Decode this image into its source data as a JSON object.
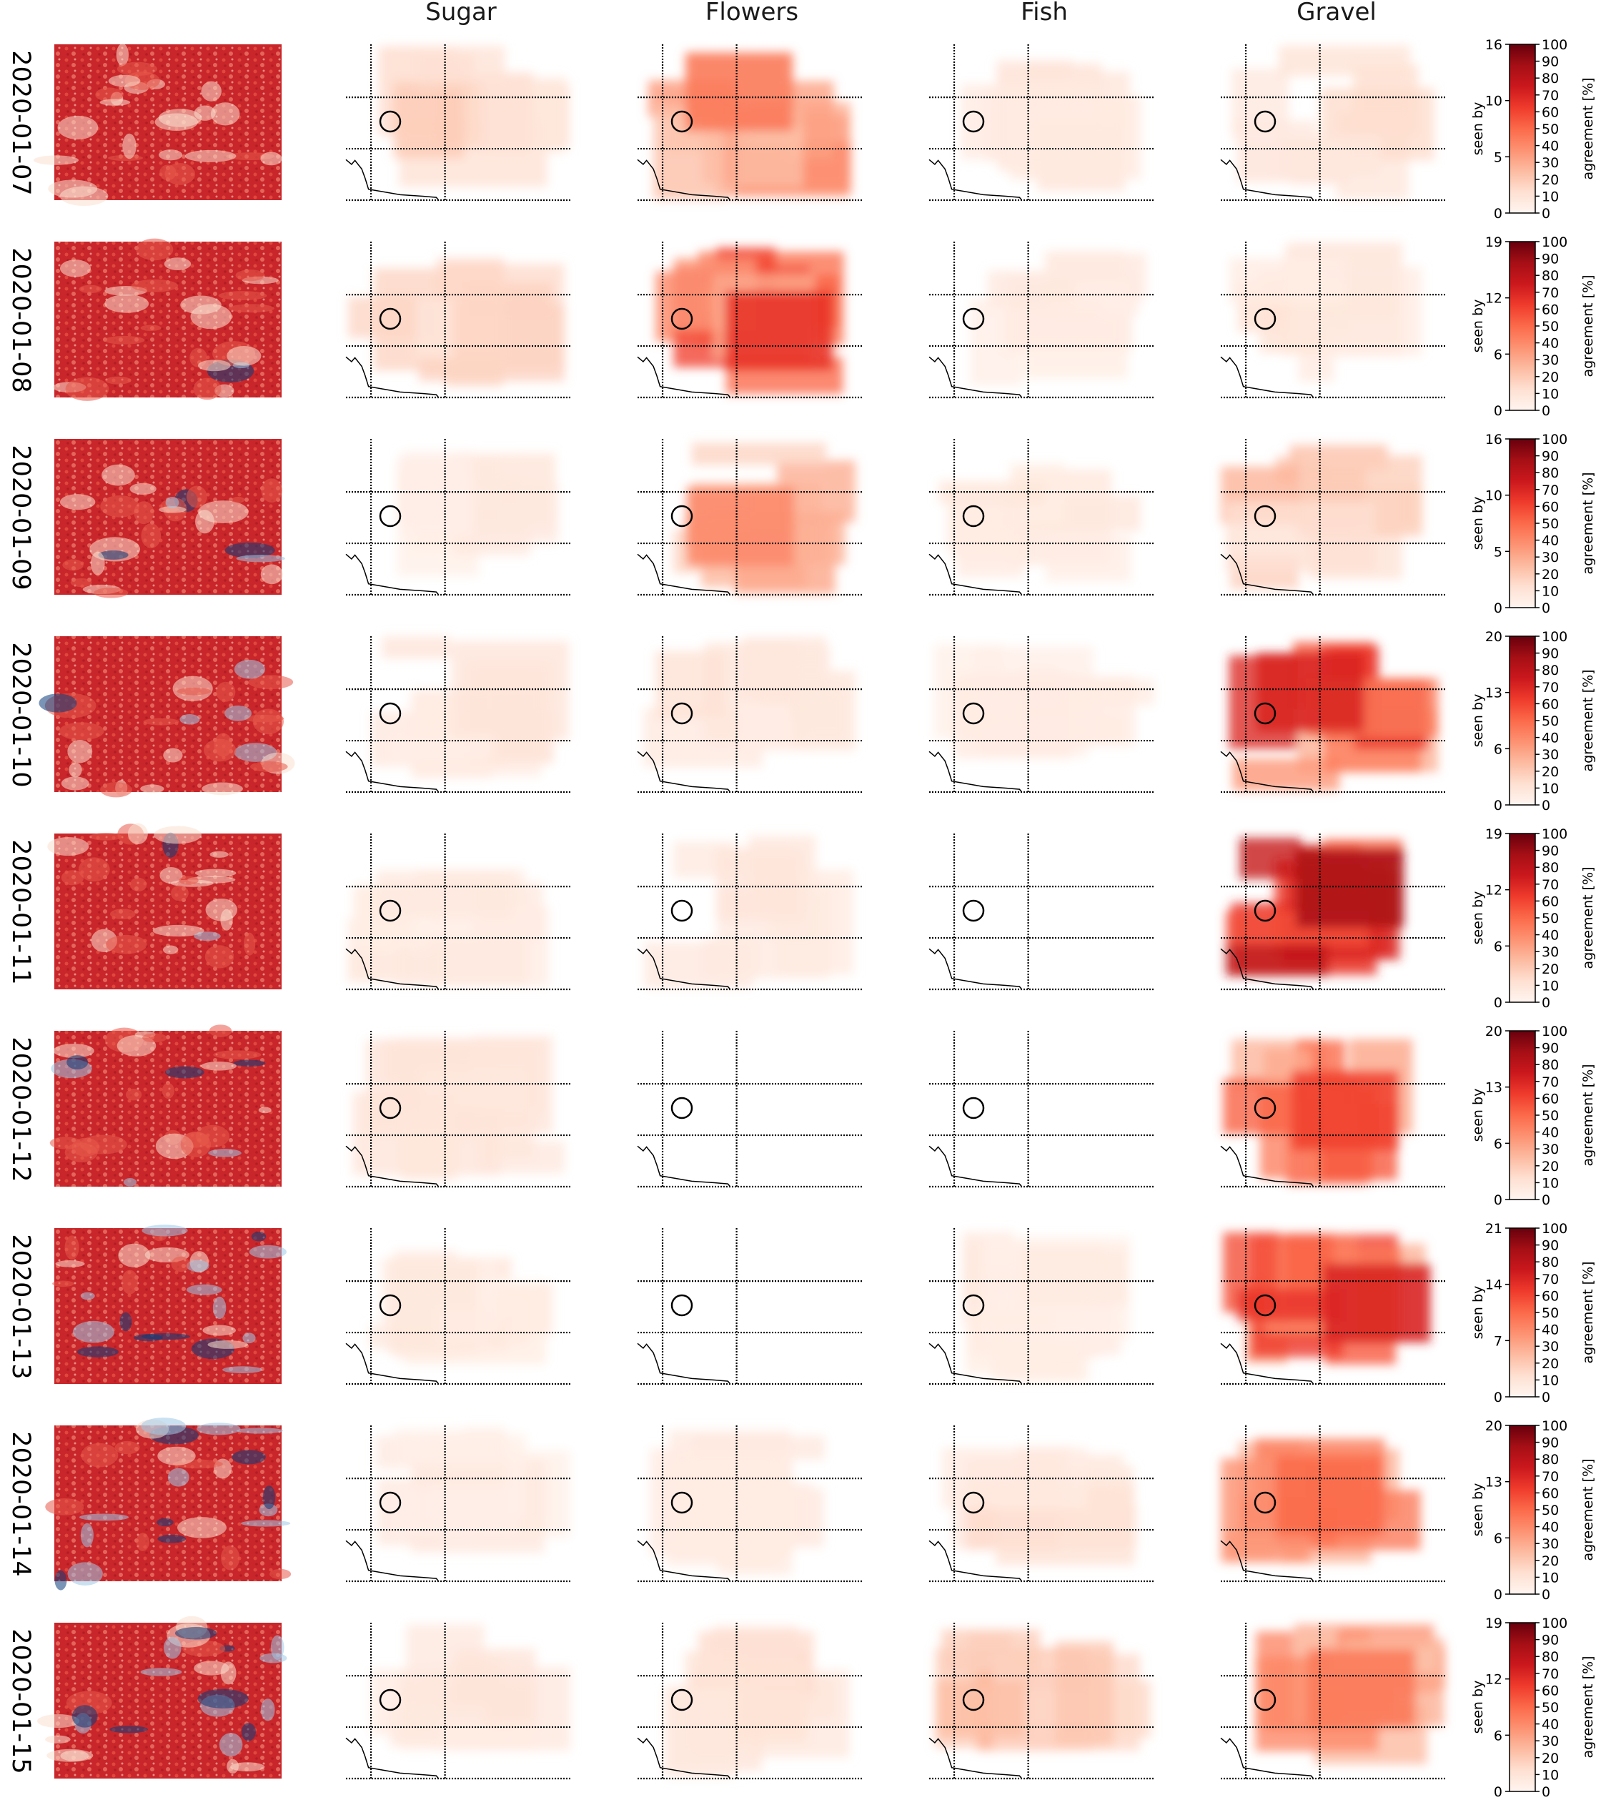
{
  "column_titles": [
    "Sugar",
    "Flowers",
    "Fish",
    "Gravel"
  ],
  "colorbar": {
    "left_label": "seen by",
    "right_label": "agreement [%]",
    "pct_ticks": [
      "0",
      "10",
      "20",
      "30",
      "40",
      "50",
      "60",
      "70",
      "80",
      "90",
      "100"
    ]
  },
  "colors": {
    "cmap": [
      "#fff5f0",
      "#fee0d2",
      "#fcbba1",
      "#fc9272",
      "#fb6a4a",
      "#ef3b2c",
      "#cb181d",
      "#a50f15",
      "#67000d"
    ],
    "satellite_warm": "#c8262a",
    "satellite_cold": "#0b3d7a"
  },
  "chart_data": {
    "type": "heatmap",
    "columns": [
      "Sugar",
      "Flowers",
      "Fish",
      "Gravel"
    ],
    "rows": [
      {
        "date": "2020-01-07",
        "seen_by_ticks": [
          "0",
          "5",
          "10",
          "16"
        ],
        "max_seen_by": 16,
        "max_agreement_pct": {
          "Sugar": 20,
          "Flowers": 45,
          "Fish": 12,
          "Gravel": 15
        }
      },
      {
        "date": "2020-01-08",
        "seen_by_ticks": [
          "0",
          "6",
          "12",
          "19"
        ],
        "max_seen_by": 19,
        "max_agreement_pct": {
          "Sugar": 18,
          "Flowers": 65,
          "Fish": 8,
          "Gravel": 12
        }
      },
      {
        "date": "2020-01-09",
        "seen_by_ticks": [
          "0",
          "5",
          "10",
          "16"
        ],
        "max_seen_by": 16,
        "max_agreement_pct": {
          "Sugar": 8,
          "Flowers": 40,
          "Fish": 10,
          "Gravel": 30
        }
      },
      {
        "date": "2020-01-10",
        "seen_by_ticks": [
          "0",
          "6",
          "13",
          "20"
        ],
        "max_seen_by": 20,
        "max_agreement_pct": {
          "Sugar": 10,
          "Flowers": 12,
          "Fish": 6,
          "Gravel": 70
        }
      },
      {
        "date": "2020-01-11",
        "seen_by_ticks": [
          "0",
          "6",
          "12",
          "19"
        ],
        "max_seen_by": 19,
        "max_agreement_pct": {
          "Sugar": 8,
          "Flowers": 10,
          "Fish": 0,
          "Gravel": 85
        }
      },
      {
        "date": "2020-01-12",
        "seen_by_ticks": [
          "0",
          "6",
          "13",
          "20"
        ],
        "max_seen_by": 20,
        "max_agreement_pct": {
          "Sugar": 10,
          "Flowers": 0,
          "Fish": 0,
          "Gravel": 60
        }
      },
      {
        "date": "2020-01-13",
        "seen_by_ticks": [
          "0",
          "7",
          "14",
          "21"
        ],
        "max_seen_by": 21,
        "max_agreement_pct": {
          "Sugar": 10,
          "Flowers": 0,
          "Fish": 8,
          "Gravel": 70
        }
      },
      {
        "date": "2020-01-14",
        "seen_by_ticks": [
          "0",
          "6",
          "13",
          "20"
        ],
        "max_seen_by": 20,
        "max_agreement_pct": {
          "Sugar": 8,
          "Flowers": 8,
          "Fish": 15,
          "Gravel": 50
        }
      },
      {
        "date": "2020-01-15",
        "seen_by_ticks": [
          "0",
          "6",
          "12",
          "19"
        ],
        "max_seen_by": 19,
        "max_agreement_pct": {
          "Sugar": 10,
          "Flowers": 15,
          "Fish": 30,
          "Gravel": 45
        }
      }
    ]
  }
}
